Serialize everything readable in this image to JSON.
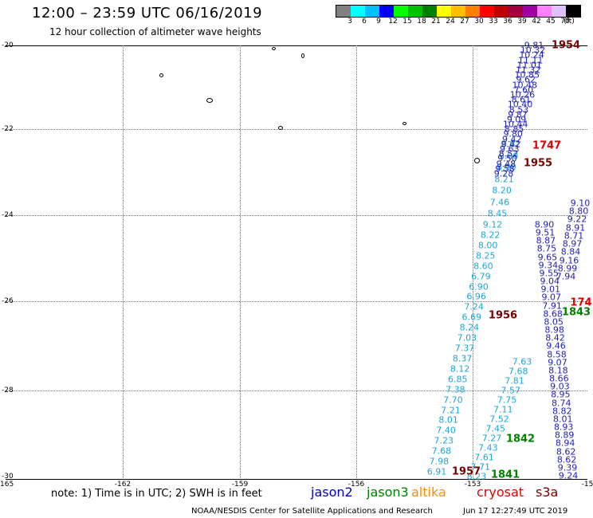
{
  "header": {
    "title": "12:00 – 23:59 UTC 06/16/2019",
    "subtitle": "12 hour collection of altimeter wave heights"
  },
  "colorbar": {
    "colors": [
      "#808080",
      "#00ffff",
      "#00bfff",
      "#0000ff",
      "#00ff00",
      "#00c000",
      "#008000",
      "#ffff00",
      "#ffbf00",
      "#ff8000",
      "#ff0000",
      "#c00000",
      "#a00040",
      "#a000a0",
      "#ff80ff",
      "#e0c0ff",
      "#000000"
    ],
    "labels": [
      "3",
      "6",
      "9",
      "12",
      "15",
      "18",
      "21",
      "24",
      "27",
      "30",
      "33",
      "36",
      "39",
      "42",
      "45",
      "70",
      "(ft)"
    ]
  },
  "axes": {
    "y_ticks": [
      "-20",
      "-22",
      "-24",
      "-26",
      "-28",
      "-30"
    ],
    "x_ticks": [
      "-165",
      "-162",
      "-159",
      "-156",
      "-153",
      "-15"
    ]
  },
  "colors": {
    "jason2": "#0000cc",
    "jason3": "#008000",
    "altika": "#ff8c00",
    "cryosat": "#e00000",
    "s3a": "#7a0000",
    "light": "#1ea5d6",
    "dark": "#1f1fb8"
  },
  "track_light": [
    "9.12",
    "8.22",
    "8.00",
    "8.25",
    "8.60",
    "6.79",
    "6.90",
    "6.96",
    "7.24",
    "6.69",
    "8.24",
    "7.03",
    "7.37",
    "8.37",
    "8.12",
    "6.85",
    "7.38",
    "7.70",
    "7.21",
    "8.01",
    "7.40",
    "7.23",
    "7.68",
    "7.98",
    "6.91"
  ],
  "track_light2": [
    "8.82",
    "8.08",
    "8.90",
    "8.21",
    "8.20",
    "7.46",
    "8.45"
  ],
  "track_light3": [
    "7.63",
    "7.68",
    "7.81",
    "7.57",
    "7.75",
    "7.11",
    "7.52",
    "7.45",
    "7.27",
    "7.43",
    "7.61",
    "7.71",
    "8.23"
  ],
  "track_dark_upper": [
    "9.81",
    "10.32",
    "10.24",
    "11.11",
    "11.01",
    "11.32",
    "10.85",
    "9.62",
    "10.48",
    "7.60",
    "10.26",
    "8.61",
    "10.40",
    "8.53",
    "9.87",
    "9.09",
    "10.44",
    "8.85",
    "9.80",
    "9.42",
    "9.42",
    "9.63",
    "8.52",
    "9.50",
    "9.48",
    "9.58",
    "9.28"
  ],
  "track_dark_mid": [
    "8.90",
    "9.51",
    "8.87",
    "8.75",
    "9.65",
    "9.34",
    "9.55",
    "9.04",
    "9.01",
    "9.07",
    "7.91",
    "8.68",
    "8.05",
    "8.98",
    "8.42",
    "9.46",
    "8.58",
    "9.07",
    "8.18",
    "8.66",
    "9.03",
    "8.95",
    "8.74",
    "8.82",
    "8.01",
    "8.93",
    "8.89",
    "8.94",
    "8.62",
    "8.62",
    "9.39",
    "9.24"
  ],
  "track_right": [
    "9.10",
    "8.80",
    "9.22",
    "8.91",
    "8.71",
    "8.97",
    "8.84",
    "9.16",
    "8.99",
    "7.94"
  ],
  "pass_labels": {
    "p1954": "1954",
    "p1747": "1747",
    "p1955": "1955",
    "p1956": "1956",
    "p1842": "1842",
    "p1843": "1843",
    "p1957": "1957",
    "p1841": "1841",
    "p174r": "174"
  },
  "footer": {
    "note": "note:  1) Time is in UTC;  2) SWH is in feet",
    "jason2": "jason2",
    "jason3": "jason3",
    "altika": "altika",
    "cryosat": "cryosat",
    "s3a": "s3a",
    "credit": "NOAA/NESDIS Center for Satellite Applications and Research",
    "stamp": "Jun 17 12:27:49 UTC 2019"
  }
}
